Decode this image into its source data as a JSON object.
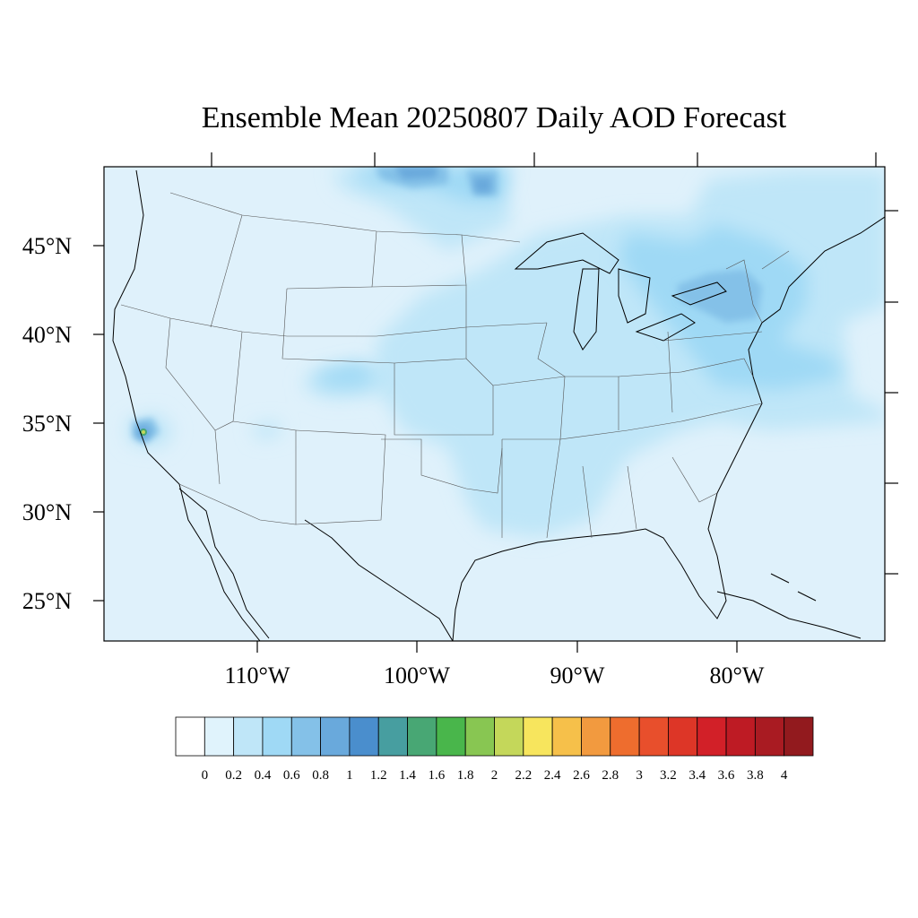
{
  "title": "Ensemble Mean 20250807 Daily AOD Forecast",
  "map": {
    "lat_labels": [
      "45°N",
      "40°N",
      "35°N",
      "30°N",
      "25°N"
    ],
    "lon_labels": [
      "110°W",
      "100°W",
      "90°W",
      "80°W"
    ],
    "background_color": "#dff1fb"
  },
  "colorbar": {
    "tick_labels": [
      "0",
      "0.2",
      "0.4",
      "0.6",
      "0.8",
      "1",
      "1.2",
      "1.4",
      "1.6",
      "1.8",
      "2",
      "2.2",
      "2.4",
      "2.6",
      "2.8",
      "3",
      "3.2",
      "3.4",
      "3.6",
      "3.8",
      "4"
    ],
    "colors": [
      "#ffffff",
      "#e0f3fc",
      "#bfe6f8",
      "#9fd9f5",
      "#84c1e8",
      "#69a9dc",
      "#4a8ecd",
      "#479ea0",
      "#48a774",
      "#49b64b",
      "#88c652",
      "#c4d75a",
      "#f7e55d",
      "#f6c04a",
      "#f29a3f",
      "#ee6d2e",
      "#e84f2c",
      "#dd3627",
      "#d22028",
      "#be1b24",
      "#a91b22",
      "#921a1e"
    ]
  }
}
